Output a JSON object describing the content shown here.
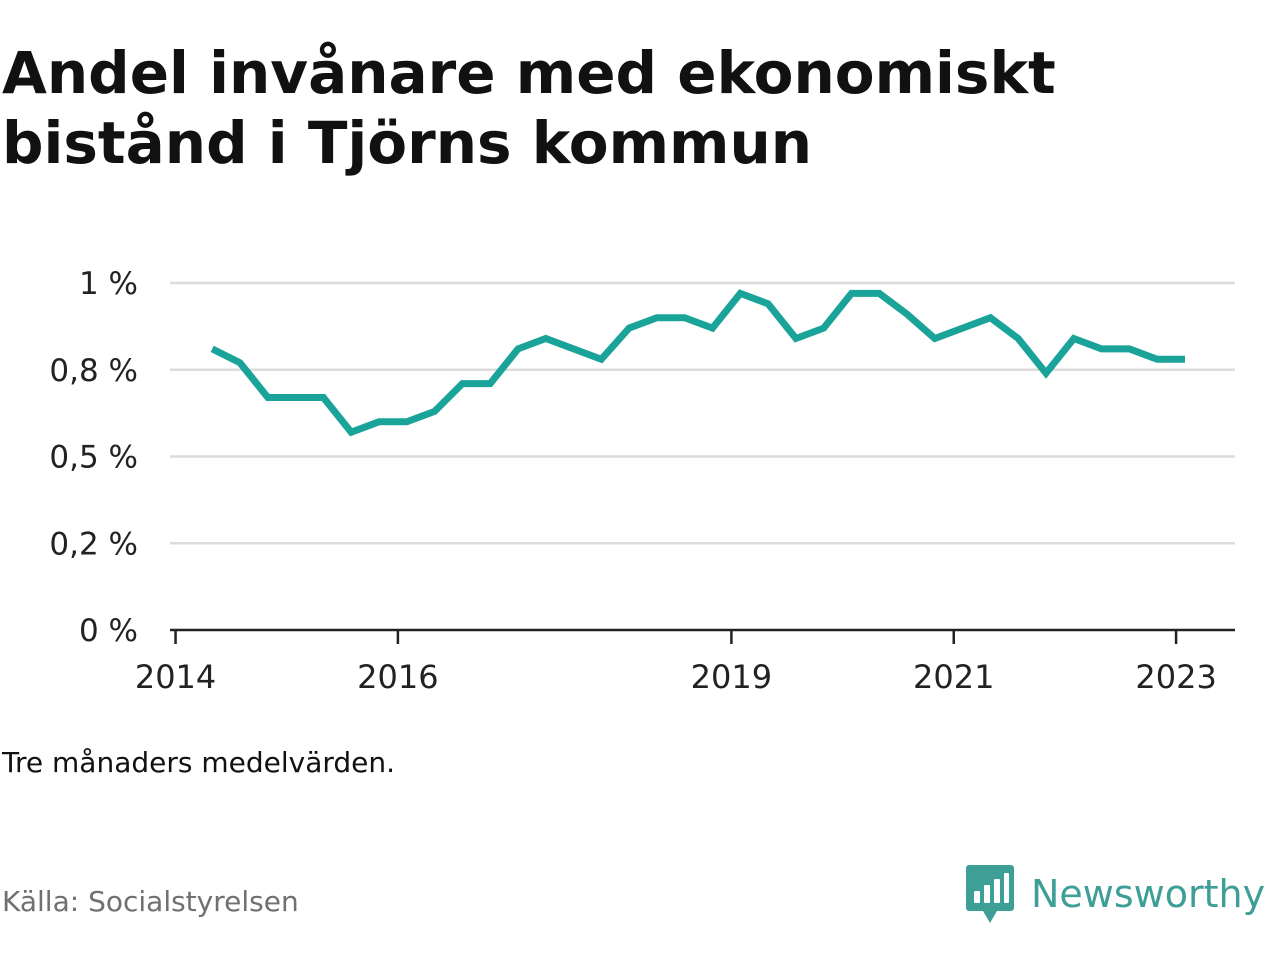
{
  "title": "Andel invånare med ekonomiskt bistånd i Tjörns kommun",
  "note": "Tre månaders medelvärden.",
  "source": "Källa: Socialstyrelsen",
  "brand": {
    "name": "Newsworthy",
    "icon": "newsworthy-logo-icon",
    "color": "#3d9f95"
  },
  "chart_data": {
    "type": "line",
    "title": "Andel invånare med ekonomiskt bistånd i Tjörns kommun",
    "xlabel": "",
    "ylabel": "",
    "ylim": [
      0,
      1
    ],
    "grid": true,
    "y_ticks": [
      {
        "value": 0,
        "label": "0 %"
      },
      {
        "value": 0.25,
        "label": "0,2 %"
      },
      {
        "value": 0.5,
        "label": "0,5 %"
      },
      {
        "value": 0.75,
        "label": "0,8 %"
      },
      {
        "value": 1,
        "label": "1 %"
      }
    ],
    "x_ticks": [
      {
        "value": 2014.0,
        "label": "2014"
      },
      {
        "value": 2016.0,
        "label": "2016"
      },
      {
        "value": 2019.0,
        "label": "2019"
      },
      {
        "value": 2021.0,
        "label": "2021"
      },
      {
        "value": 2023.0,
        "label": "2023"
      }
    ],
    "xlim": [
      2013.95,
      2023.53
    ],
    "series": [
      {
        "color": "#1aa399",
        "x": [
          2014.33,
          2014.58,
          2014.83,
          2015.08,
          2015.33,
          2015.58,
          2015.83,
          2016.08,
          2016.33,
          2016.58,
          2016.83,
          2017.08,
          2017.33,
          2017.58,
          2017.83,
          2018.08,
          2018.33,
          2018.58,
          2018.83,
          2019.08,
          2019.33,
          2019.58,
          2019.83,
          2020.08,
          2020.33,
          2020.58,
          2020.83,
          2021.08,
          2021.33,
          2021.58,
          2021.83,
          2022.08,
          2022.33,
          2022.58,
          2022.83,
          2023.08
        ],
        "values": [
          0.81,
          0.77,
          0.67,
          0.67,
          0.67,
          0.57,
          0.6,
          0.6,
          0.63,
          0.71,
          0.71,
          0.81,
          0.84,
          0.81,
          0.78,
          0.87,
          0.9,
          0.9,
          0.87,
          0.97,
          0.94,
          0.84,
          0.87,
          0.97,
          0.97,
          0.91,
          0.84,
          0.87,
          0.9,
          0.84,
          0.74,
          0.84,
          0.81,
          0.81,
          0.78,
          0.78
        ]
      }
    ]
  }
}
